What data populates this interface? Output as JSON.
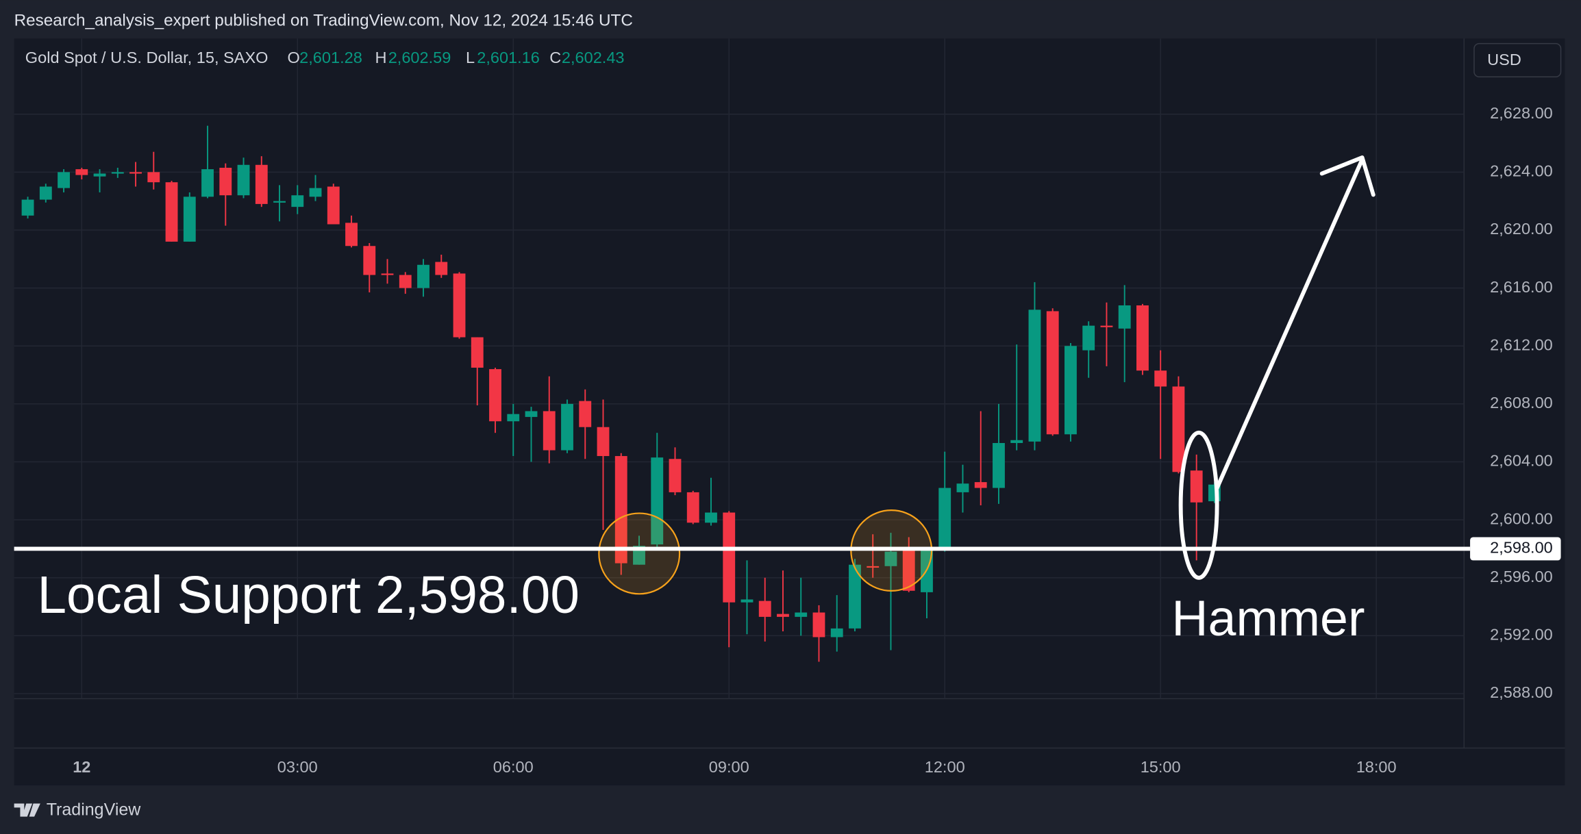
{
  "header": {
    "published": "Research_analysis_expert published on TradingView.com, Nov 12, 2024 15:46 UTC"
  },
  "footer": {
    "brand": "TradingView"
  },
  "chart_data": {
    "type": "candlestick",
    "title": "Gold Spot / U.S. Dollar, 15, SAXO",
    "ohlc_legend": [
      {
        "label": "O",
        "value": "2,601.28"
      },
      {
        "label": "H",
        "value": "2,602.59"
      },
      {
        "label": "L",
        "value": "2,601.16"
      },
      {
        "label": "C",
        "value": "2,602.43"
      }
    ],
    "currency": "USD",
    "up_color": "#089981",
    "down_color": "#f23645",
    "grid": true,
    "x": [
      -0.75,
      -0.5,
      -0.25,
      0,
      0.25,
      0.5,
      0.75,
      1,
      1.25,
      1.5,
      1.75,
      2,
      2.25,
      2.5,
      2.75,
      3,
      3.25,
      3.5,
      3.75,
      4,
      4.25,
      4.5,
      4.75,
      5,
      5.25,
      5.5,
      5.75,
      6,
      6.25,
      6.5,
      6.75,
      7,
      7.25,
      7.5,
      7.75,
      8,
      8.25,
      8.5,
      8.75,
      9,
      9.25,
      9.5,
      9.75,
      10,
      10.25,
      10.5,
      10.75,
      11,
      11.25,
      11.5,
      11.75,
      12,
      12.25,
      12.5,
      12.75,
      13,
      13.25,
      13.5,
      13.75,
      14,
      14.25,
      14.5,
      14.75,
      15,
      15.25,
      15.5,
      15.75
    ],
    "open": [
      2621.0,
      2622.1,
      2622.9,
      2624.2,
      2623.7,
      2623.9,
      2624.0,
      2624.0,
      2623.3,
      2619.2,
      2622.3,
      2624.3,
      2622.4,
      2624.5,
      2621.9,
      2621.6,
      2622.3,
      2623.0,
      2620.5,
      2618.9,
      2617.0,
      2616.9,
      2616.0,
      2617.8,
      2617.0,
      2612.6,
      2610.4,
      2606.8,
      2607.1,
      2607.5,
      2604.8,
      2608.2,
      2606.4,
      2604.4,
      2596.9,
      2598.3,
      2604.2,
      2601.9,
      2599.8,
      2600.5,
      2594.3,
      2594.4,
      2593.5,
      2593.3,
      2593.6,
      2591.9,
      2592.5,
      2596.8,
      2596.8,
      2597.9,
      2595.0,
      2597.9,
      2601.9,
      2602.6,
      2602.2,
      2605.3,
      2605.4,
      2614.4,
      2605.9,
      2611.7,
      2613.4,
      2613.2,
      2614.8,
      2610.3,
      2609.2,
      2603.4,
      2601.28
    ],
    "high": [
      2622.3,
      2623.2,
      2624.2,
      2624.3,
      2624.2,
      2624.3,
      2624.7,
      2625.4,
      2623.4,
      2622.6,
      2627.2,
      2624.6,
      2625.0,
      2625.1,
      2623.1,
      2623.1,
      2623.8,
      2623.2,
      2621.0,
      2619.1,
      2618.0,
      2617.1,
      2618.0,
      2618.3,
      2617.1,
      2612.6,
      2610.5,
      2608.0,
      2607.8,
      2609.9,
      2608.3,
      2609.0,
      2608.3,
      2604.6,
      2598.9,
      2606.0,
      2605.0,
      2602.0,
      2602.9,
      2600.6,
      2597.2,
      2596.0,
      2596.5,
      2596.0,
      2594.1,
      2594.8,
      2597.3,
      2599.0,
      2599.1,
      2598.8,
      2598.0,
      2604.7,
      2603.8,
      2607.5,
      2608.0,
      2612.1,
      2616.4,
      2614.6,
      2612.2,
      2613.7,
      2615.0,
      2616.2,
      2614.9,
      2611.7,
      2609.9,
      2604.5,
      2602.59
    ],
    "low": [
      2620.8,
      2621.9,
      2622.6,
      2623.5,
      2622.6,
      2623.6,
      2623.0,
      2622.8,
      2619.2,
      2619.2,
      2622.2,
      2620.3,
      2622.2,
      2621.6,
      2620.6,
      2621.1,
      2622.0,
      2620.4,
      2618.8,
      2615.7,
      2616.3,
      2615.6,
      2615.4,
      2616.7,
      2612.5,
      2607.9,
      2606.0,
      2604.4,
      2604.0,
      2603.9,
      2604.6,
      2604.2,
      2599.3,
      2596.2,
      2596.9,
      2597.9,
      2601.7,
      2599.7,
      2599.6,
      2591.2,
      2592.1,
      2591.6,
      2592.3,
      2592.0,
      2590.2,
      2590.9,
      2592.3,
      2596.0,
      2591.0,
      2595.0,
      2593.2,
      2597.8,
      2600.5,
      2601.0,
      2601.1,
      2604.8,
      2604.8,
      2605.8,
      2605.4,
      2609.8,
      2610.6,
      2609.5,
      2610.0,
      2604.2,
      2603.2,
      2597.2,
      2601.16
    ],
    "close": [
      2622.1,
      2623.0,
      2624.0,
      2623.8,
      2623.9,
      2624.0,
      2623.9,
      2623.3,
      2619.2,
      2622.3,
      2624.2,
      2622.4,
      2624.5,
      2621.8,
      2622.0,
      2622.4,
      2622.9,
      2620.4,
      2618.9,
      2616.9,
      2616.9,
      2616.0,
      2617.6,
      2616.9,
      2612.6,
      2610.5,
      2606.8,
      2607.3,
      2607.5,
      2604.8,
      2608.0,
      2606.4,
      2604.4,
      2597.0,
      2598.2,
      2604.3,
      2601.9,
      2599.8,
      2600.5,
      2594.3,
      2594.5,
      2593.3,
      2593.3,
      2593.6,
      2591.9,
      2592.5,
      2596.9,
      2596.7,
      2597.8,
      2595.1,
      2597.9,
      2602.2,
      2602.5,
      2602.2,
      2605.3,
      2605.5,
      2614.5,
      2605.9,
      2612.0,
      2613.4,
      2613.3,
      2614.8,
      2610.3,
      2609.2,
      2603.3,
      2601.2,
      2602.43
    ],
    "xlim": [
      -0.94,
      19.22
    ],
    "xticks": [
      {
        "value": 0,
        "label": "12"
      },
      {
        "value": 3,
        "label": "03:00"
      },
      {
        "value": 6,
        "label": "06:00"
      },
      {
        "value": 9,
        "label": "09:00"
      },
      {
        "value": 12,
        "label": "12:00"
      },
      {
        "value": 15,
        "label": "15:00"
      },
      {
        "value": 18,
        "label": "18:00"
      }
    ],
    "ylim": [
      2587.65,
      2633.22
    ],
    "yticks": [
      {
        "value": 2588,
        "label": "2,588.00"
      },
      {
        "value": 2592,
        "label": "2,592.00"
      },
      {
        "value": 2596,
        "label": "2,596.00"
      },
      {
        "value": 2600,
        "label": "2,600.00"
      },
      {
        "value": 2604,
        "label": "2,604.00"
      },
      {
        "value": 2608,
        "label": "2,608.00"
      },
      {
        "value": 2612,
        "label": "2,612.00"
      },
      {
        "value": 2616,
        "label": "2,616.00"
      },
      {
        "value": 2620,
        "label": "2,620.00"
      },
      {
        "value": 2624,
        "label": "2,624.00"
      },
      {
        "value": 2628,
        "label": "2,628.00"
      }
    ],
    "support": {
      "value": 2598,
      "label": "2,598.00"
    },
    "annotations": [
      "Local Support 2,598.00",
      "Hammer"
    ]
  }
}
